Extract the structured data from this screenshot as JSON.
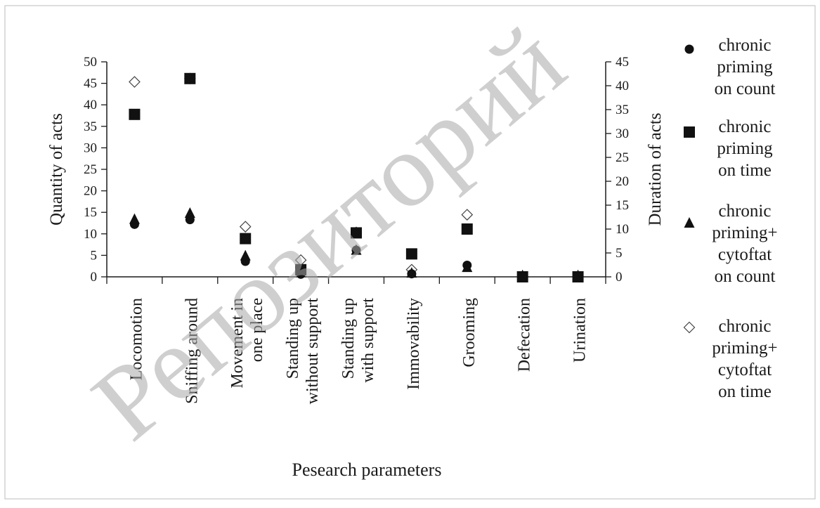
{
  "chart_data": {
    "type": "scatter",
    "title": "",
    "xlabel": "Pesearch parameters",
    "ylabel": "Quantity of acts",
    "y2label": "Duration of acts",
    "ylim": [
      0,
      50
    ],
    "y2lim": [
      0,
      45
    ],
    "yticks": [
      "0",
      "5",
      "10",
      "15",
      "20",
      "25",
      "30",
      "35",
      "40",
      "45",
      "50"
    ],
    "y2ticks": [
      "0",
      "5",
      "10",
      "15",
      "20",
      "25",
      "30",
      "35",
      "40",
      "45"
    ],
    "grid": false,
    "legend_position": "right",
    "categories": [
      "Locomotion",
      "Sniffing around",
      "Movement in\none place",
      "Standing up\nwithout support",
      "Standing up\nwith support",
      "Immovability",
      "Grooming",
      "Defecation",
      "Urination"
    ],
    "series": [
      {
        "name": "chronic\npriming\non count",
        "marker": "circle",
        "axis": "left",
        "values": [
          12.2,
          13.3,
          3.6,
          0.6,
          6.2,
          0.7,
          2.7,
          0.2,
          0.2
        ]
      },
      {
        "name": "chronic\npriming\non time",
        "marker": "square",
        "axis": "right",
        "values": [
          34,
          41.5,
          8,
          1.5,
          9.2,
          4.8,
          10,
          0,
          0
        ]
      },
      {
        "name": "chronic\npriming+\ncytoftat\non count",
        "marker": "triangle",
        "axis": "left",
        "values": [
          13.3,
          14.7,
          4.8,
          1.3,
          6.1,
          0.8,
          2.1,
          0.2,
          0.2
        ]
      },
      {
        "name": "chronic\npriming+\ncytoftat\non time",
        "marker": "diamond-open",
        "axis": "right",
        "values": [
          40.8,
          41.5,
          10.5,
          3.5,
          9.3,
          1.5,
          13,
          0.1,
          0.1
        ]
      }
    ],
    "colors": {
      "marker": "#111111",
      "axis": "#1a1a1a",
      "watermark": "#a9a9a9"
    }
  },
  "watermark": {
    "text": "Репозиторий"
  }
}
